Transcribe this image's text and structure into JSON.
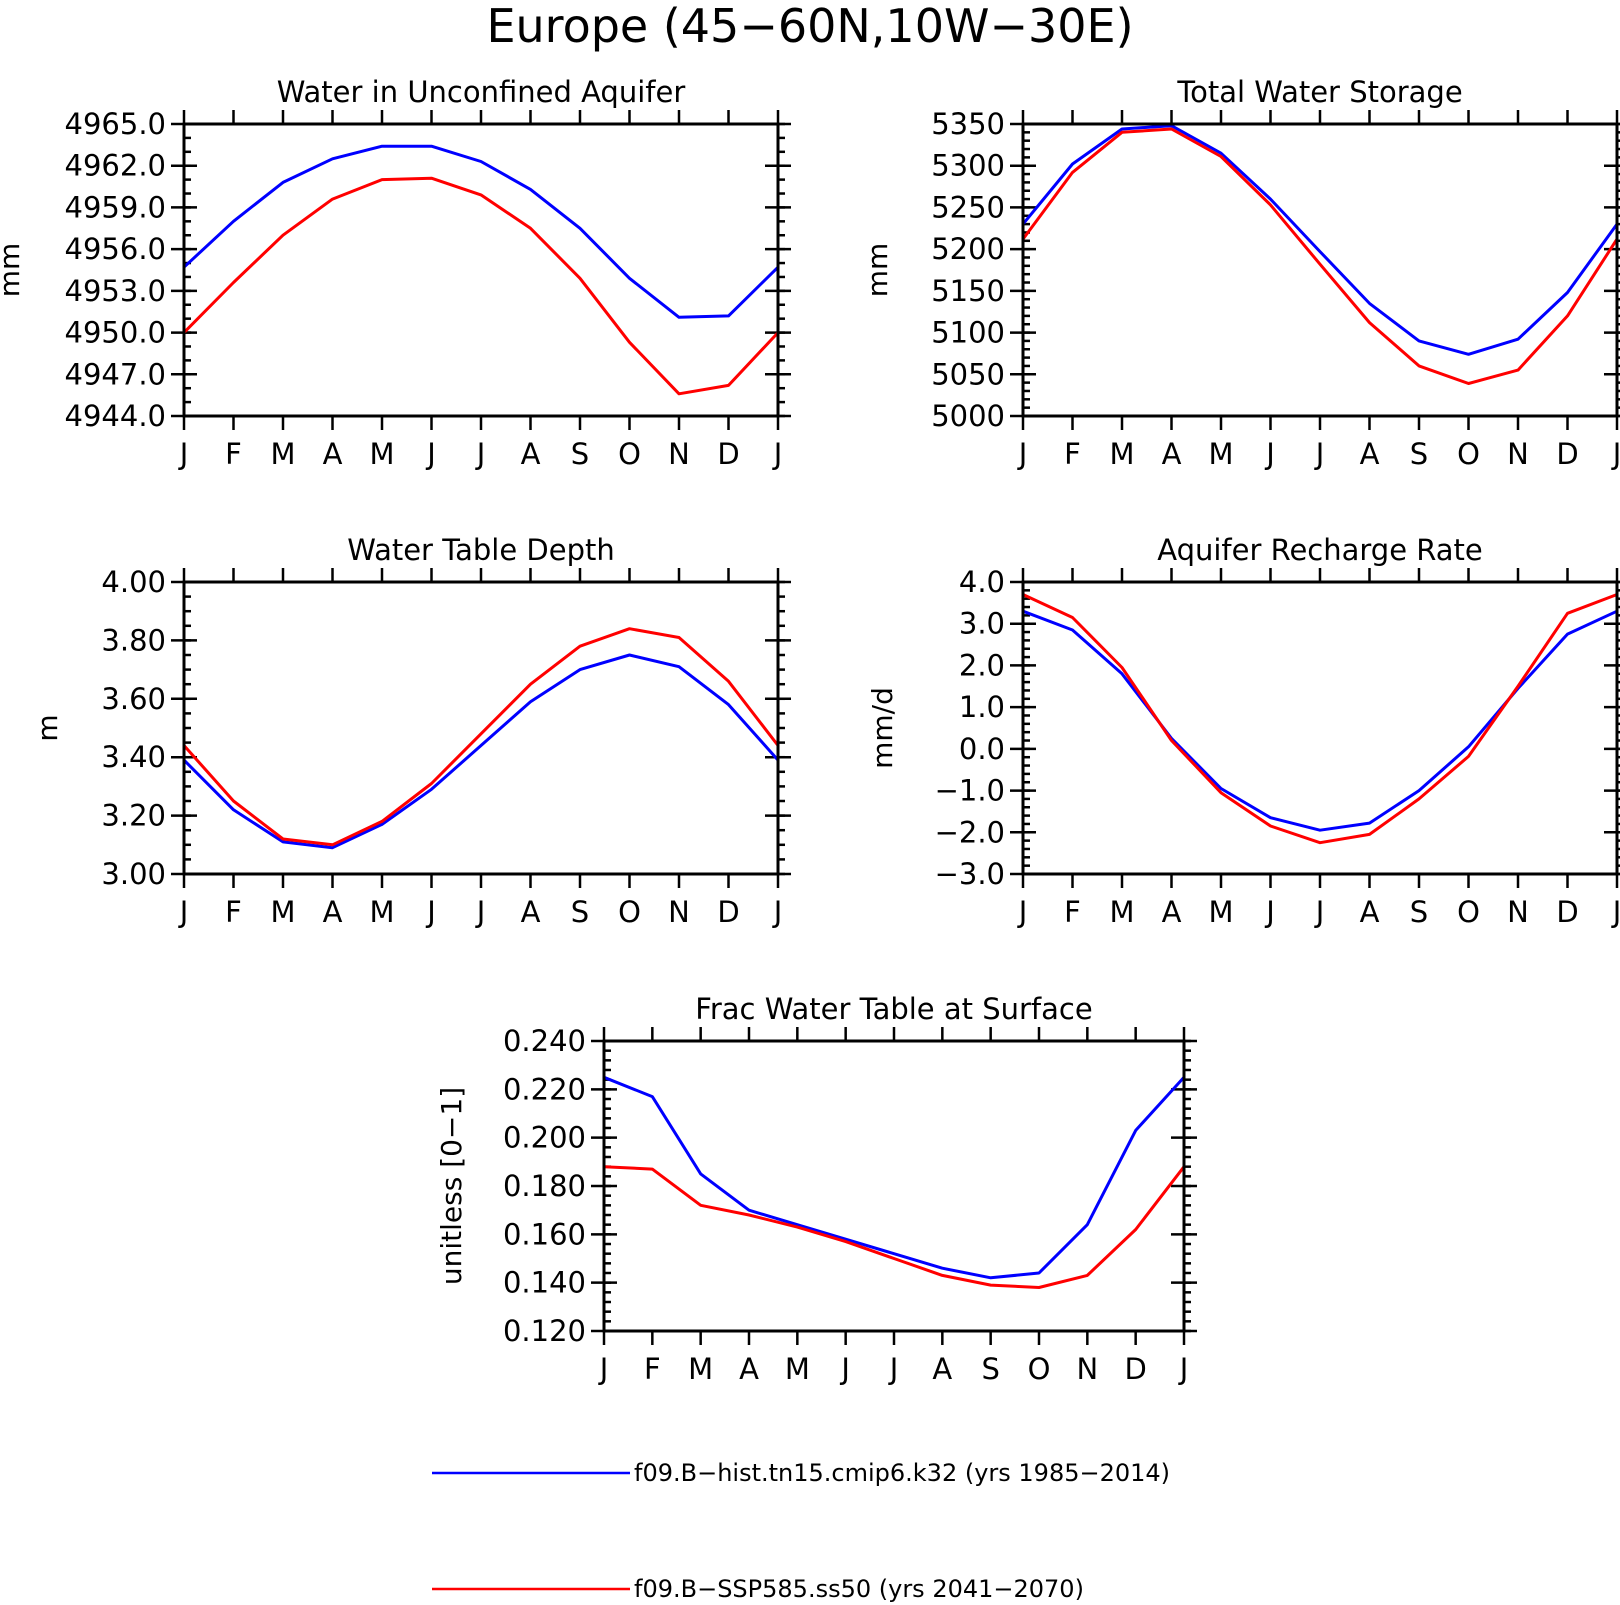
{
  "figure": {
    "title": "Europe (45−60N,10W−30E)"
  },
  "colors": {
    "hist": "#0000ff",
    "ssp": "#ff0000"
  },
  "chart_data": [
    {
      "type": "line",
      "title": "Water in Unconfined Aquifer",
      "ylabel": "mm",
      "xlabel": "",
      "categories": [
        "J",
        "F",
        "M",
        "A",
        "M",
        "J",
        "J",
        "A",
        "S",
        "O",
        "N",
        "D",
        "J"
      ],
      "ylim": [
        4944.0,
        4965.0
      ],
      "yticks": [
        4944.0,
        4947.0,
        4950.0,
        4953.0,
        4956.0,
        4959.0,
        4962.0,
        4965.0
      ],
      "ytick_labels": [
        "4944.0",
        "4947.0",
        "4950.0",
        "4953.0",
        "4956.0",
        "4959.0",
        "4962.0",
        "4965.0"
      ],
      "yminor_step": 1.0,
      "series": [
        {
          "color": "#0000ff",
          "values": [
            4954.7,
            4958.0,
            4960.8,
            4962.5,
            4963.4,
            4963.4,
            4962.3,
            4960.3,
            4957.5,
            4953.9,
            4951.1,
            4951.2,
            4954.7
          ]
        },
        {
          "color": "#ff0000",
          "values": [
            4950.0,
            4953.6,
            4957.0,
            4959.6,
            4961.0,
            4961.1,
            4959.9,
            4957.5,
            4953.9,
            4949.3,
            4945.6,
            4946.2,
            4950.0
          ]
        }
      ]
    },
    {
      "type": "line",
      "title": "Total Water Storage",
      "ylabel": "mm",
      "xlabel": "",
      "categories": [
        "J",
        "F",
        "M",
        "A",
        "M",
        "J",
        "J",
        "A",
        "S",
        "O",
        "N",
        "D",
        "J"
      ],
      "ylim": [
        5000,
        5350
      ],
      "yticks": [
        5000,
        5050,
        5100,
        5150,
        5200,
        5250,
        5300,
        5350
      ],
      "ytick_labels": [
        "5000",
        "5050",
        "5100",
        "5150",
        "5200",
        "5250",
        "5300",
        "5350"
      ],
      "yminor_step": 10,
      "series": [
        {
          "color": "#0000ff",
          "values": [
            5230,
            5302,
            5344,
            5348,
            5315,
            5260,
            5197,
            5135,
            5090,
            5074,
            5092,
            5148,
            5230
          ]
        },
        {
          "color": "#ff0000",
          "values": [
            5212,
            5292,
            5340,
            5344,
            5311,
            5253,
            5182,
            5112,
            5060,
            5039,
            5055,
            5120,
            5212
          ]
        }
      ]
    },
    {
      "type": "line",
      "title": "Water Table Depth",
      "ylabel": "m",
      "xlabel": "",
      "categories": [
        "J",
        "F",
        "M",
        "A",
        "M",
        "J",
        "J",
        "A",
        "S",
        "O",
        "N",
        "D",
        "J"
      ],
      "ylim": [
        3.0,
        4.0
      ],
      "yticks": [
        3.0,
        3.2,
        3.4,
        3.6,
        3.8,
        4.0
      ],
      "ytick_labels": [
        "3.00",
        "3.20",
        "3.40",
        "3.60",
        "3.80",
        "4.00"
      ],
      "yminor_step": 0.05,
      "series": [
        {
          "color": "#0000ff",
          "values": [
            3.39,
            3.22,
            3.11,
            3.09,
            3.17,
            3.29,
            3.44,
            3.59,
            3.7,
            3.75,
            3.71,
            3.58,
            3.39
          ]
        },
        {
          "color": "#ff0000",
          "values": [
            3.44,
            3.25,
            3.12,
            3.1,
            3.18,
            3.31,
            3.48,
            3.65,
            3.78,
            3.84,
            3.81,
            3.66,
            3.44
          ]
        }
      ]
    },
    {
      "type": "line",
      "title": "Aquifer Recharge Rate",
      "ylabel": "mm/d",
      "xlabel": "",
      "categories": [
        "J",
        "F",
        "M",
        "A",
        "M",
        "J",
        "J",
        "A",
        "S",
        "O",
        "N",
        "D",
        "J"
      ],
      "ylim": [
        -3.0,
        4.0
      ],
      "yticks": [
        -3.0,
        -2.0,
        -1.0,
        0.0,
        1.0,
        2.0,
        3.0,
        4.0
      ],
      "ytick_labels": [
        "−3.0",
        "−2.0",
        "−1.0",
        "0.0",
        "1.0",
        "2.0",
        "3.0",
        "4.0"
      ],
      "yminor_step": 0.2,
      "series": [
        {
          "color": "#0000ff",
          "values": [
            3.3,
            2.85,
            1.8,
            0.25,
            -0.95,
            -1.65,
            -1.95,
            -1.78,
            -1.0,
            0.05,
            1.45,
            2.75,
            3.3
          ]
        },
        {
          "color": "#ff0000",
          "values": [
            3.7,
            3.15,
            1.95,
            0.2,
            -1.05,
            -1.85,
            -2.25,
            -2.05,
            -1.2,
            -0.18,
            1.5,
            3.25,
            3.7
          ]
        }
      ]
    },
    {
      "type": "line",
      "title": "Frac Water Table at Surface",
      "ylabel": "unitless [0−1]",
      "xlabel": "",
      "categories": [
        "J",
        "F",
        "M",
        "A",
        "M",
        "J",
        "J",
        "A",
        "S",
        "O",
        "N",
        "D",
        "J"
      ],
      "ylim": [
        0.12,
        0.24
      ],
      "yticks": [
        0.12,
        0.14,
        0.16,
        0.18,
        0.2,
        0.22,
        0.24
      ],
      "ytick_labels": [
        "0.120",
        "0.140",
        "0.160",
        "0.180",
        "0.200",
        "0.220",
        "0.240"
      ],
      "yminor_step": 0.004,
      "series": [
        {
          "color": "#0000ff",
          "values": [
            0.225,
            0.217,
            0.185,
            0.17,
            0.164,
            0.158,
            0.152,
            0.146,
            0.142,
            0.144,
            0.164,
            0.203,
            0.225
          ]
        },
        {
          "color": "#ff0000",
          "values": [
            0.188,
            0.187,
            0.172,
            0.168,
            0.163,
            0.157,
            0.15,
            0.143,
            0.139,
            0.138,
            0.143,
            0.162,
            0.188
          ]
        }
      ]
    }
  ],
  "legend": [
    {
      "label": "f09.B−hist.tn15.cmip6.k32 (yrs 1985−2014)",
      "color": "#0000ff"
    },
    {
      "label": "f09.B−SSP585.ss50 (yrs 2041−2070)",
      "color": "#ff0000"
    }
  ]
}
